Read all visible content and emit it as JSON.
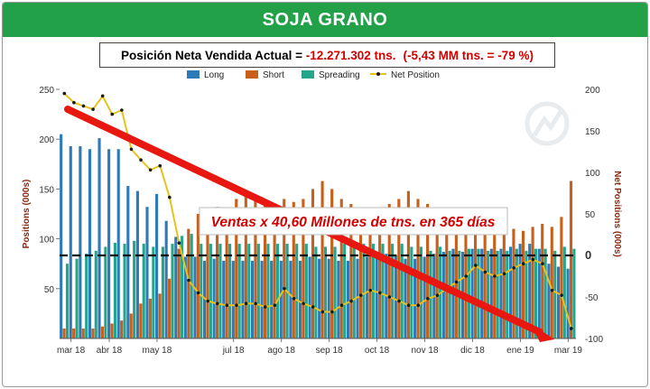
{
  "banner_title": "SOJA GRANO",
  "subtitle": {
    "label": "Posición  Neta Vendida Actual",
    "equals": " = ",
    "value": "-12.271.302 tns.",
    "detail": "(-5,43 MM tns. = -79 %)"
  },
  "annotation": "Ventas x 40,60 Millones de tns. en 365 días",
  "colors": {
    "long": "#2e7ab8",
    "short": "#c8601c",
    "spreading": "#24a58c",
    "net": "#e6c21b",
    "banner": "#22a149",
    "arrow": "#e8170f"
  },
  "chart_data": {
    "type": "bar",
    "title": "",
    "xlabel": "",
    "ylabel": "Positions (000s)",
    "ylabel_right": "Net Positions (000s)",
    "ylim": [
      0,
      250
    ],
    "ylim_right": [
      -100,
      200
    ],
    "yticks": [
      50,
      100,
      150,
      200,
      250
    ],
    "yticks_right": [
      -100,
      -50,
      0,
      50,
      100,
      150,
      200
    ],
    "x_tick_labels": [
      "mar 18",
      "abr 18",
      "may 18",
      "jul 18",
      "ago 18",
      "sep 18",
      "oct 18",
      "nov 18",
      "dic 18",
      "ene 19",
      "mar 19"
    ],
    "x_tick_weeks": [
      1,
      5,
      10,
      18,
      23,
      28,
      33,
      38,
      43,
      48,
      53
    ],
    "legend": [
      "Long",
      "Short",
      "Spreading",
      "Net Position"
    ],
    "legend_position": "top",
    "grid": false,
    "reference_line_right": 0,
    "series": [
      {
        "name": "Long",
        "values": [
          205,
          193,
          193,
          190,
          201,
          190,
          190,
          153,
          148,
          132,
          145,
          118,
          102,
          82,
          82,
          78,
          80,
          78,
          78,
          78,
          78,
          78,
          78,
          78,
          78,
          78,
          82,
          80,
          80,
          78,
          78,
          80,
          82,
          85,
          85,
          84,
          80,
          80,
          82,
          85,
          87,
          90,
          87,
          90,
          90,
          90,
          90,
          92,
          95,
          95,
          90,
          75,
          72,
          70
        ]
      },
      {
        "name": "Short",
        "values": [
          10,
          10,
          10,
          10,
          12,
          15,
          18,
          25,
          35,
          40,
          45,
          60,
          90,
          110,
          125,
          130,
          132,
          130,
          140,
          145,
          140,
          138,
          135,
          140,
          137,
          140,
          150,
          158,
          150,
          140,
          135,
          125,
          130,
          128,
          135,
          140,
          148,
          140,
          135,
          130,
          125,
          120,
          117,
          112,
          110,
          105,
          107,
          110,
          108,
          112,
          115,
          112,
          122,
          158
        ]
      },
      {
        "name": "Spreading",
        "values": [
          75,
          80,
          85,
          88,
          92,
          96,
          95,
          98,
          95,
          92,
          92,
          95,
          103,
          105,
          95,
          95,
          95,
          95,
          95,
          95,
          95,
          95,
          95,
          95,
          95,
          95,
          92,
          92,
          92,
          95,
          95,
          95,
          95,
          95,
          95,
          95,
          92,
          92,
          88,
          92,
          88,
          88,
          90,
          90,
          88,
          88,
          88,
          90,
          88,
          90,
          90,
          88,
          92,
          90
        ]
      },
      {
        "name": "Net Position",
        "axis": "right",
        "values": [
          195,
          184,
          180,
          176,
          192,
          170,
          175,
          128,
          115,
          103,
          108,
          70,
          15,
          -30,
          -45,
          -55,
          -58,
          -60,
          -60,
          -58,
          -58,
          -62,
          -60,
          -40,
          -52,
          -58,
          -62,
          -68,
          -68,
          -60,
          -55,
          -48,
          -42,
          -45,
          -50,
          -55,
          -60,
          -60,
          -52,
          -48,
          -40,
          -32,
          -25,
          -12,
          -20,
          -25,
          -22,
          -15,
          -10,
          -5,
          -10,
          -42,
          -48,
          -88
        ]
      }
    ]
  }
}
